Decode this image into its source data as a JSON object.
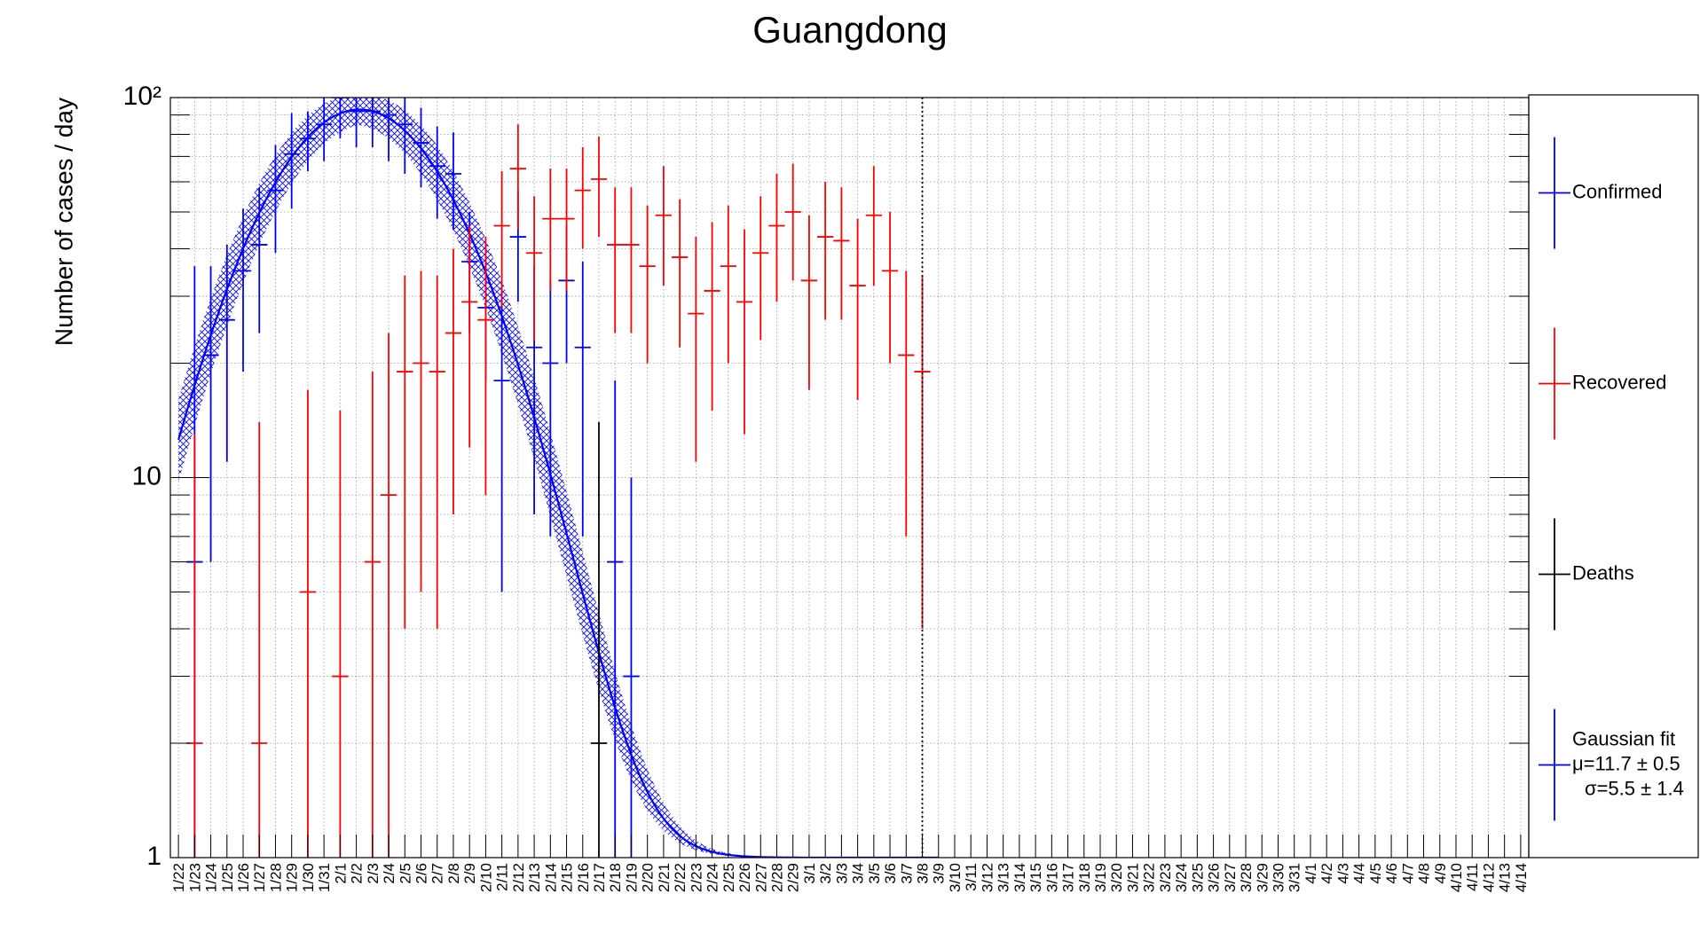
{
  "chart_data": {
    "type": "errorbar",
    "title": "Guangdong",
    "y_label": "Number of cases / day",
    "log_y": true,
    "grid": true,
    "xlim": [
      0,
      84
    ],
    "ylim": [
      1,
      100
    ],
    "yticks": [
      1,
      10,
      {
        "value": 100,
        "label": "10²"
      }
    ],
    "yminor_ticks": [
      2,
      3,
      4,
      5,
      6,
      7,
      8,
      9,
      20,
      30,
      40,
      50,
      60,
      70,
      80,
      90
    ],
    "marker_x": 46.5,
    "legend": "right",
    "categories": [
      "1/22",
      "1/23",
      "1/24",
      "1/25",
      "1/26",
      "1/27",
      "1/28",
      "1/29",
      "1/30",
      "1/31",
      "2/1",
      "2/2",
      "2/3",
      "2/4",
      "2/5",
      "2/6",
      "2/7",
      "2/8",
      "2/9",
      "2/10",
      "2/11",
      "2/12",
      "2/13",
      "2/14",
      "2/15",
      "2/16",
      "2/17",
      "2/18",
      "2/19",
      "2/20",
      "2/21",
      "2/22",
      "2/23",
      "2/24",
      "2/25",
      "2/26",
      "2/27",
      "2/28",
      "2/29",
      "3/1",
      "3/2",
      "3/3",
      "3/4",
      "3/5",
      "3/6",
      "3/7",
      "3/8",
      "3/9",
      "3/10",
      "3/11",
      "3/12",
      "3/13",
      "3/14",
      "3/15",
      "3/16",
      "3/17",
      "3/18",
      "3/19",
      "3/20",
      "3/21",
      "3/22",
      "3/23",
      "3/24",
      "3/25",
      "3/26",
      "3/27",
      "3/28",
      "3/29",
      "3/30",
      "3/31",
      "4/1",
      "4/2",
      "4/3",
      "4/4",
      "4/5",
      "4/6",
      "4/7",
      "4/8",
      "4/9",
      "4/10",
      "4/11",
      "4/12",
      "4/13",
      "4/14"
    ],
    "series": [
      {
        "name": "Confirmed",
        "color": "#0000ff",
        "values": [
          null,
          6,
          21,
          26,
          35,
          41,
          57,
          71,
          78,
          85,
          100,
          92,
          92,
          90,
          85,
          76,
          66,
          63,
          37,
          28,
          18,
          43,
          22,
          20,
          33,
          22,
          null,
          6,
          3,
          null,
          null,
          null,
          null,
          null,
          null,
          null,
          null,
          null,
          null,
          null,
          null,
          null,
          null,
          null,
          null,
          null,
          null,
          null,
          null,
          null,
          null,
          null,
          null,
          null,
          null,
          null,
          null,
          null,
          null,
          null,
          null,
          null,
          null,
          null,
          null,
          null,
          null,
          null,
          null,
          null,
          null,
          null,
          null,
          null,
          null,
          null,
          null,
          null,
          null,
          null,
          null,
          null,
          null,
          null
        ],
        "errors": [
          null,
          30,
          15,
          15,
          16,
          17,
          18,
          20,
          14,
          17,
          22,
          18,
          18,
          22,
          22,
          18,
          18,
          18,
          13,
          10,
          13,
          14,
          14,
          13,
          13,
          15,
          null,
          12,
          7,
          null,
          null,
          null,
          null,
          null,
          null,
          null,
          null,
          null,
          null,
          null,
          null,
          null,
          null,
          null,
          null,
          null,
          null,
          null,
          null,
          null,
          null,
          null,
          null,
          null,
          null,
          null,
          null,
          null,
          null,
          null,
          null,
          null,
          null,
          null,
          null,
          null,
          null,
          null,
          null,
          null,
          null,
          null,
          null,
          null,
          null,
          null,
          null,
          null,
          null,
          null,
          null,
          null,
          null,
          null
        ]
      },
      {
        "name": "Recovered",
        "color": "#ff0000",
        "values": [
          null,
          2,
          null,
          null,
          null,
          2,
          null,
          null,
          5,
          null,
          3,
          null,
          6,
          9,
          19,
          20,
          19,
          24,
          29,
          26,
          46,
          65,
          39,
          48,
          48,
          57,
          61,
          41,
          41,
          36,
          49,
          38,
          27,
          31,
          36,
          29,
          39,
          46,
          50,
          33,
          43,
          42,
          32,
          49,
          35,
          21,
          19,
          null,
          null,
          null,
          null,
          null,
          null,
          null,
          null,
          null,
          null,
          null,
          null,
          null,
          null,
          null,
          null,
          null,
          null,
          null,
          null,
          null,
          null,
          null,
          null,
          null,
          null,
          null,
          null,
          null,
          null,
          null,
          null,
          null,
          null,
          null,
          null,
          null
        ],
        "errors": [
          null,
          11,
          null,
          null,
          null,
          12,
          null,
          null,
          12,
          null,
          12,
          null,
          13,
          15,
          15,
          15,
          15,
          16,
          17,
          17,
          18,
          20,
          16,
          17,
          17,
          17,
          18,
          17,
          17,
          16,
          17,
          16,
          16,
          16,
          16,
          16,
          16,
          17,
          17,
          16,
          17,
          16,
          16,
          17,
          15,
          14,
          15,
          null,
          null,
          null,
          null,
          null,
          null,
          null,
          null,
          null,
          null,
          null,
          null,
          null,
          null,
          null,
          null,
          null,
          null,
          null,
          null,
          null,
          null,
          null,
          null,
          null,
          null,
          null,
          null,
          null,
          null,
          null,
          null,
          null,
          null,
          null,
          null,
          null
        ]
      },
      {
        "name": "Deaths",
        "color": "#000000",
        "values": [
          null,
          null,
          null,
          null,
          null,
          null,
          null,
          null,
          null,
          null,
          null,
          null,
          null,
          null,
          null,
          null,
          null,
          null,
          null,
          null,
          null,
          null,
          null,
          null,
          null,
          null,
          2,
          null,
          null,
          null,
          null,
          null,
          null,
          null,
          null,
          null,
          null,
          null,
          null,
          null,
          null,
          null,
          null,
          null,
          null,
          null,
          null,
          null,
          null,
          null,
          null,
          null,
          null,
          null,
          null,
          null,
          null,
          null,
          null,
          null,
          null,
          null,
          null,
          null,
          null,
          null,
          null,
          null,
          null,
          null,
          null,
          null,
          null,
          null,
          null,
          null,
          null,
          null,
          null,
          null,
          null,
          null,
          null,
          null
        ],
        "errors": [
          null,
          null,
          null,
          null,
          null,
          null,
          null,
          null,
          null,
          null,
          null,
          null,
          null,
          null,
          null,
          null,
          null,
          null,
          null,
          null,
          null,
          null,
          null,
          null,
          null,
          null,
          12,
          null,
          null,
          null,
          null,
          null,
          null,
          null,
          null,
          null,
          null,
          null,
          null,
          null,
          null,
          null,
          null,
          null,
          null,
          null,
          null,
          null,
          null,
          null,
          null,
          null,
          null,
          null,
          null,
          null,
          null,
          null,
          null,
          null,
          null,
          null,
          null,
          null,
          null,
          null,
          null,
          null,
          null,
          null,
          null,
          null,
          null,
          null,
          null,
          null,
          null,
          null,
          null,
          null,
          null,
          null,
          null,
          null
        ]
      }
    ],
    "fit": {
      "name": "Gaussian fit",
      "color": "#0000ff",
      "mu": 11.7,
      "mu_error": 0.5,
      "sigma": 5.5,
      "sigma_error": 1.4,
      "amplitude": 92,
      "amplitude_error": 8,
      "offset": 1,
      "xrange": [
        0.5,
        47.5
      ],
      "mu_label": "μ=11.7 ± 0.5",
      "sigma_label": "σ=5.5 ± 1.4"
    }
  }
}
